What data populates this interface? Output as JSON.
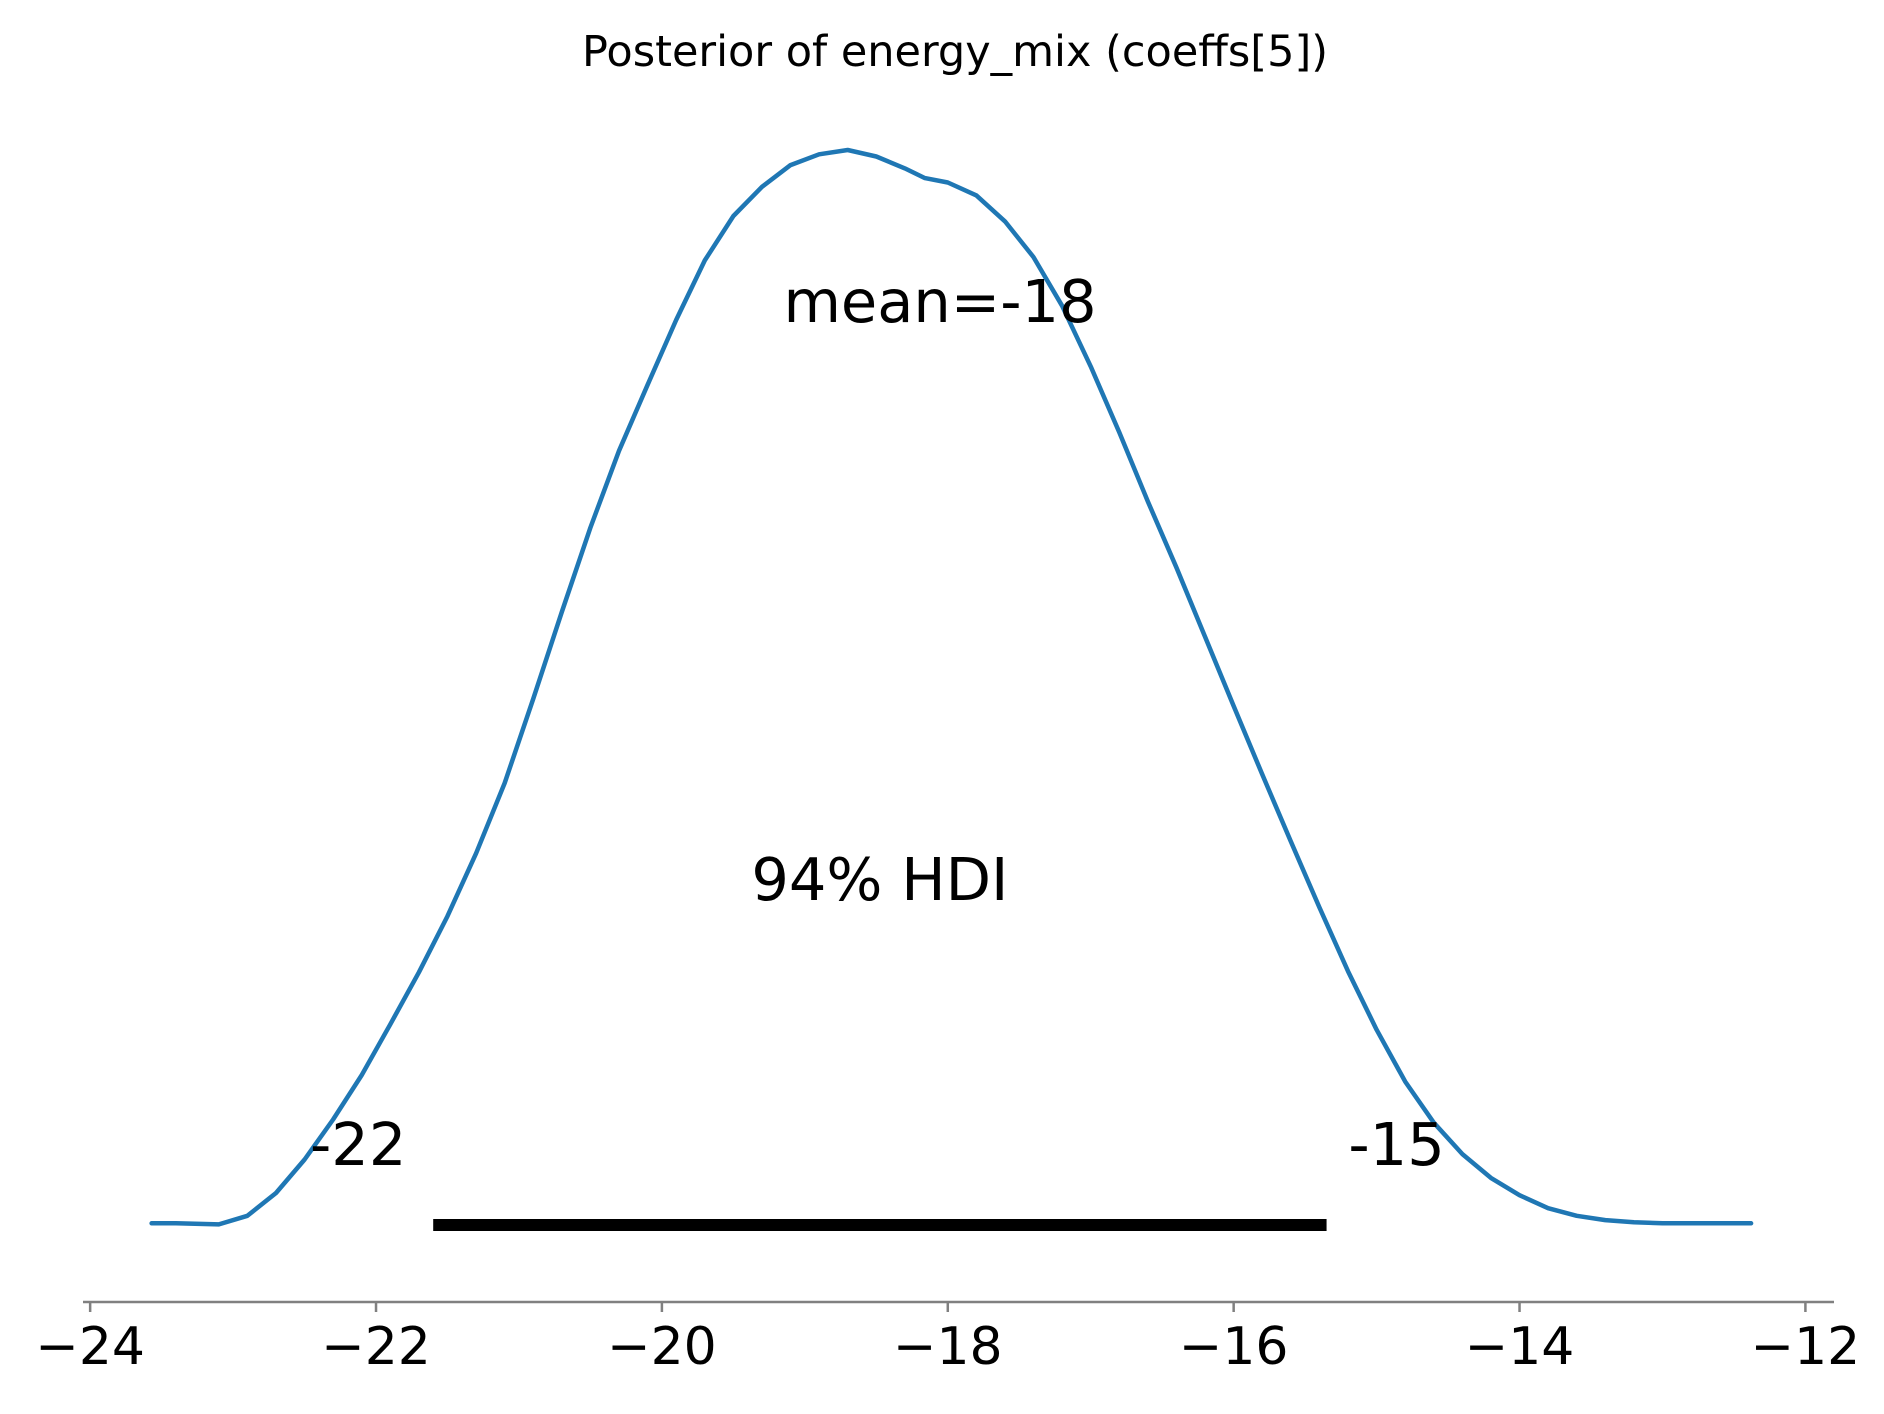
{
  "chart_data": {
    "type": "line",
    "title": "Posterior of energy_mix (coeffs[5])",
    "xlabel": "",
    "ylabel": "",
    "xlim": [
      -24.05,
      -11.8
    ],
    "ylim": [
      0,
      1.0
    ],
    "x_ticks": [
      -24,
      -22,
      -20,
      -18,
      -16,
      -14,
      -12
    ],
    "x_tick_labels": [
      "−24",
      "−22",
      "−20",
      "−18",
      "−16",
      "−14",
      "−12"
    ],
    "y_axis_visible": false,
    "grid": false,
    "series": [
      {
        "color": "#1f77b4",
        "x": [
          -23.57,
          -23.4,
          -23.1,
          -22.9,
          -22.7,
          -22.5,
          -22.3,
          -22.1,
          -21.9,
          -21.7,
          -21.5,
          -21.3,
          -21.1,
          -20.9,
          -20.7,
          -20.5,
          -20.3,
          -20.1,
          -19.9,
          -19.7,
          -19.5,
          -19.3,
          -19.1,
          -18.9,
          -18.7,
          -18.5,
          -18.3,
          -18.16,
          -18.0,
          -17.8,
          -17.6,
          -17.4,
          -17.2,
          -17.0,
          -16.8,
          -16.6,
          -16.4,
          -16.2,
          -16.0,
          -15.8,
          -15.6,
          -15.4,
          -15.2,
          -15.0,
          -14.8,
          -14.6,
          -14.4,
          -14.2,
          -14.0,
          -13.8,
          -13.6,
          -13.4,
          -13.2,
          -13.0,
          -12.8,
          -12.6,
          -12.4,
          -12.38
        ],
        "y": [
          0.008,
          0.008,
          0.007,
          0.015,
          0.036,
          0.067,
          0.104,
          0.145,
          0.192,
          0.24,
          0.292,
          0.35,
          0.415,
          0.493,
          0.573,
          0.651,
          0.722,
          0.783,
          0.843,
          0.898,
          0.939,
          0.966,
          0.986,
          0.996,
          1.0,
          0.994,
          0.983,
          0.974,
          0.97,
          0.958,
          0.934,
          0.901,
          0.856,
          0.8,
          0.739,
          0.675,
          0.614,
          0.55,
          0.486,
          0.423,
          0.361,
          0.3,
          0.241,
          0.187,
          0.139,
          0.101,
          0.072,
          0.05,
          0.034,
          0.022,
          0.015,
          0.011,
          0.009,
          0.008,
          0.008,
          0.008,
          0.008,
          0.008
        ]
      }
    ],
    "hdi": {
      "low": -21.6,
      "high": -15.35,
      "label": "94% HDI",
      "low_label": "-22",
      "high_label": "-15"
    },
    "mean": {
      "value": -18,
      "label": "mean=-18"
    }
  }
}
